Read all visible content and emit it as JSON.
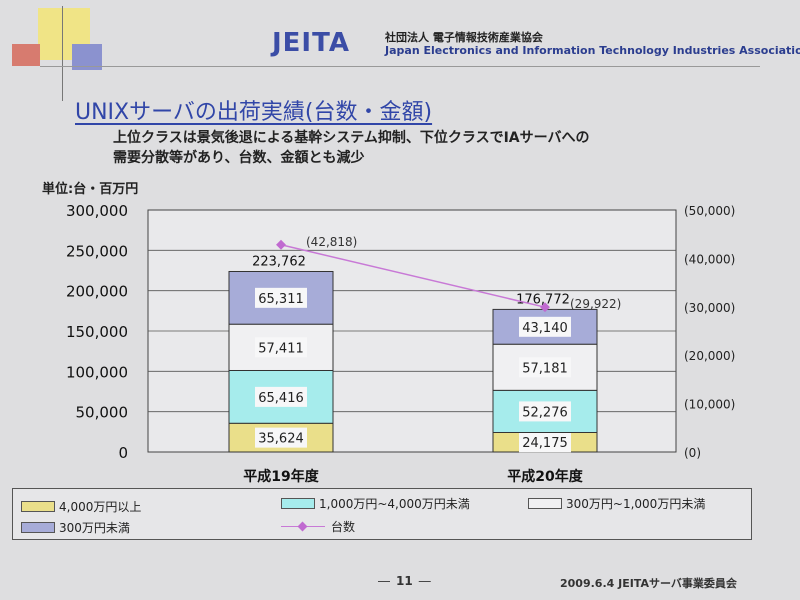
{
  "header": {
    "logo_text": "JEITA",
    "org_jp": "社団法人 電子情報技術産業協会",
    "org_en": "Japan Electronics and Information Technology Industries Association"
  },
  "slide": {
    "title": "UNIXサーバの出荷実績(台数・金額)",
    "subtitle_line1": "上位クラスは景気後退による基幹システム抑制、下位クラスでIAサーバへの",
    "subtitle_line2": "需要分散等があり、台数、金額とも減少",
    "unit_label": "単位:台・百万円"
  },
  "chart_data": {
    "type": "bar",
    "stacked": true,
    "categories": [
      "平成19年度",
      "平成20年度"
    ],
    "series": [
      {
        "name": "4,000万円以上",
        "values": [
          35624,
          24175
        ],
        "value_labels": [
          "35,624",
          "24,175"
        ],
        "color": "#eadf8a"
      },
      {
        "name": "1,000万円~4,000万円未満",
        "values": [
          65416,
          52276
        ],
        "value_labels": [
          "65,416",
          "52,276"
        ],
        "color": "#a6ecec"
      },
      {
        "name": "300万円~1,000万円未満",
        "values": [
          57411,
          57181
        ],
        "value_labels": [
          "57,411",
          "57,181"
        ],
        "color": "#f0f0f2"
      },
      {
        "name": "300万円未満",
        "values": [
          65311,
          43140
        ],
        "value_labels": [
          "65,311",
          "43,140"
        ],
        "color": "#a7acd8"
      }
    ],
    "totals": [
      223762,
      176772
    ],
    "total_labels": [
      "223,762",
      "176,772"
    ],
    "line_series": {
      "name": "台数",
      "values": [
        42818,
        29922
      ],
      "value_labels": [
        "(42,818)",
        "(29,922)"
      ],
      "color": "#c879d6",
      "axis": "right"
    },
    "ylim": [
      0,
      300000
    ],
    "yticks": [
      "300,000",
      "250,000",
      "200,000",
      "150,000",
      "100,000",
      "50,000",
      "0"
    ],
    "ytick_values": [
      300000,
      250000,
      200000,
      150000,
      100000,
      50000,
      0
    ],
    "y2lim": [
      0,
      50000
    ],
    "y2ticks": [
      "(50,000)",
      "(40,000)",
      "(30,000)",
      "(20,000)",
      "(10,000)",
      "(0)"
    ],
    "y2tick_values": [
      50000,
      40000,
      30000,
      20000,
      10000,
      0
    ],
    "grid": true,
    "legend_placement": "bottom"
  },
  "legend": {
    "items": [
      "4,000万円以上",
      "1,000万円~4,000万円未満",
      "300万円~1,000万円未満",
      "300万円未満",
      "台数"
    ]
  },
  "footer": {
    "page_dash_left": "―",
    "page_number": "11",
    "page_dash_right": "―",
    "right_text": "2009.6.4 JEITAサーバ事業委員会"
  }
}
